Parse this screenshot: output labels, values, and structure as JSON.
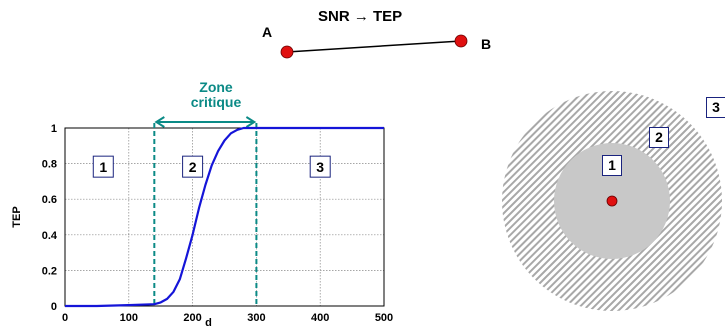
{
  "title": "SNR → TEP",
  "nodes": {
    "a_label": "A",
    "b_label": "B"
  },
  "zone_label_line1": "Zone",
  "zone_label_line2": "critique",
  "chart_data": {
    "type": "line",
    "title": "",
    "xlabel": "d",
    "ylabel": "TEP",
    "xlim": [
      0,
      500
    ],
    "ylim": [
      0,
      1
    ],
    "x_ticks": [
      "0",
      "100",
      "200",
      "300",
      "400",
      "500"
    ],
    "y_ticks": [
      "0",
      "0.2",
      "0.4",
      "0.6",
      "0.8",
      "1"
    ],
    "grid": true,
    "series": [
      {
        "color": "#1515d8",
        "x": [
          0,
          50,
          100,
          140,
          150,
          160,
          170,
          180,
          190,
          200,
          210,
          220,
          230,
          240,
          250,
          260,
          270,
          280,
          290,
          300,
          350,
          400,
          450,
          500
        ],
        "y": [
          0,
          0,
          0.005,
          0.01,
          0.02,
          0.04,
          0.08,
          0.15,
          0.27,
          0.4,
          0.55,
          0.68,
          0.79,
          0.87,
          0.93,
          0.97,
          0.99,
          1,
          1,
          1,
          1,
          1,
          1,
          1
        ]
      }
    ],
    "critical_zone": {
      "from": 140,
      "to": 300
    },
    "regions": [
      {
        "label": "1",
        "x": 60
      },
      {
        "label": "2",
        "x": 200
      },
      {
        "label": "3",
        "x": 400
      }
    ]
  },
  "coverage": {
    "labels": [
      "1",
      "2",
      "3"
    ]
  },
  "colors": {
    "zone": "#0b8a86",
    "curve": "#1515d8",
    "node": "#e01010",
    "inner_disk": "#c8c8c8",
    "hatch": "#a0a0a0"
  }
}
